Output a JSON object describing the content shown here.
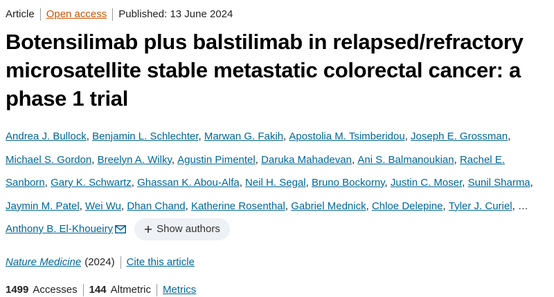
{
  "header": {
    "article_type": "Article",
    "access": "Open access",
    "published": "Published: 13 June 2024"
  },
  "title": "Botensilimab plus balstilimab in relapsed/refractory microsatellite stable metastatic colorectal cancer: a phase 1 trial",
  "authors": [
    "Andrea J. Bullock",
    "Benjamin L. Schlechter",
    "Marwan G. Fakih",
    "Apostolia M. Tsimberidou",
    "Joseph E. Grossman",
    "Michael S. Gordon",
    "Breelyn A. Wilky",
    "Agustin Pimentel",
    "Daruka Mahadevan",
    "Ani S. Balmanoukian",
    "Rachel E. Sanborn",
    "Gary K. Schwartz",
    "Ghassan K. Abou-Alfa",
    "Neil H. Segal",
    "Bruno Bockorny",
    "Justin C. Moser",
    "Sunil Sharma",
    "Jaymin M. Patel",
    "Wei Wu",
    "Dhan Chand",
    "Katherine Rosenthal",
    "Gabriel Mednick",
    "Chloe Delepine",
    "Tyler J. Curiel"
  ],
  "ellipsis": "…",
  "corresponding_author": "Anthony B. El-Khoueiry",
  "show_authors": "Show authors",
  "citation": {
    "journal": "Nature Medicine",
    "year": "(2024)",
    "cite": "Cite this article"
  },
  "metrics": {
    "accesses": 1499,
    "accesses_label": "Accesses",
    "altmetric": 144,
    "altmetric_label": "Altmetric",
    "metrics_link": "Metrics"
  }
}
